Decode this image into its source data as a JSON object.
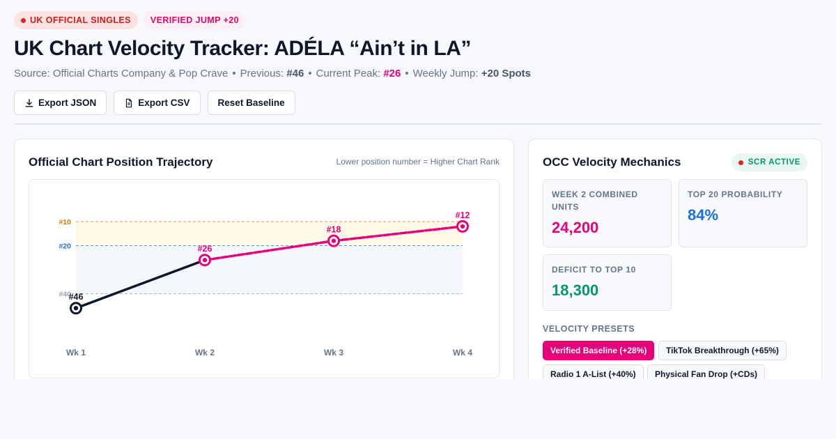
{
  "header": {
    "badge_official": "UK OFFICIAL SINGLES",
    "badge_jump": "VERIFIED JUMP +20",
    "title": "UK Chart Velocity Tracker: ADÉLA “Ain’t in LA”",
    "meta": {
      "source_label": "Source: Official Charts Company & Pop Crave",
      "previous_label": "Previous:",
      "previous_value": "#46",
      "peak_label": "Current Peak:",
      "peak_value": "#26",
      "jump_label": "Weekly Jump:",
      "jump_value": "+20 Spots",
      "separator": "•"
    }
  },
  "actions": {
    "export_json": "Export JSON",
    "export_csv": "Export CSV",
    "reset": "Reset Baseline"
  },
  "trajectory_card": {
    "title": "Official Chart Position Trajectory",
    "note": "Lower position number = Higher Chart Rank"
  },
  "chart_data": {
    "type": "line",
    "title": "Official Chart Position Trajectory",
    "x": [
      "Wk 1",
      "Wk 2",
      "Wk 3",
      "Wk 4"
    ],
    "series": [
      {
        "name": "",
        "values": [
          46,
          26,
          18,
          12
        ],
        "point_labels": [
          "#46",
          "#26",
          "#18",
          "#12"
        ]
      }
    ],
    "y_inverted": true,
    "reference_lines": [
      {
        "value": 10,
        "label": "#10",
        "color": "#d97706"
      },
      {
        "value": 20,
        "label": "#20",
        "color": "#1d6fd8"
      },
      {
        "value": 40,
        "label": "#40",
        "color": "#94a3b8"
      }
    ],
    "colors": {
      "actual": "#0f172a",
      "projected": "#e6007a",
      "top10_band": "#fff8e6",
      "top20_band": "#f4f8fd"
    }
  },
  "mechanics": {
    "title": "OCC Velocity Mechanics",
    "status": "SCR ACTIVE",
    "stats": [
      {
        "label": "WEEK 2 COMBINED UNITS",
        "value": "24,200",
        "color": "#e6007a"
      },
      {
        "label": "TOP 20 PROBABILITY",
        "value": "84%",
        "color": "#1d6fd8"
      },
      {
        "label": "DEFICIT TO TOP 10",
        "value": "18,300",
        "color": "#059669"
      }
    ],
    "presets_label": "VELOCITY PRESETS",
    "presets": [
      {
        "label": "Verified Baseline (+28%)",
        "active": true
      },
      {
        "label": "TikTok Breakthrough (+65%)",
        "active": false
      },
      {
        "label": "Radio 1 A-List (+40%)",
        "active": false
      },
      {
        "label": "Physical Fan Drop (+CDs)",
        "active": false
      }
    ]
  }
}
